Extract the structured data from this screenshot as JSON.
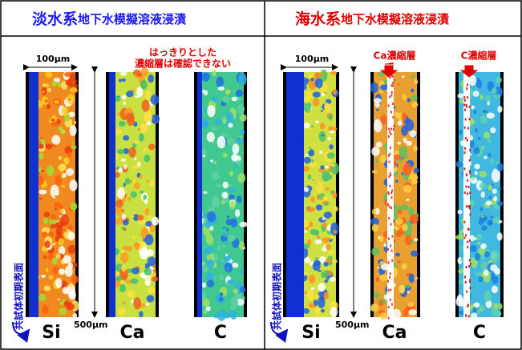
{
  "left": {
    "title_main": "淡水系",
    "title_sub": "地下水模擬溶液浸漬",
    "scale_width": "100μm",
    "scale_height": "500μm",
    "note": [
      "はっきりとした",
      "濃縮層は確認できない"
    ],
    "surface_label": "共試体初期表面",
    "panels": [
      "Si",
      "Ca",
      "C"
    ]
  },
  "right": {
    "title_main": "海水系",
    "title_sub": "地下水模擬溶液浸漬",
    "scale_width": "100μm",
    "scale_height": "500μm",
    "annotations": [
      "Ca濃縮層",
      "C濃縮層"
    ],
    "surface_label": "共試体初期表面",
    "panels": [
      "Si",
      "Ca",
      "C"
    ]
  }
}
